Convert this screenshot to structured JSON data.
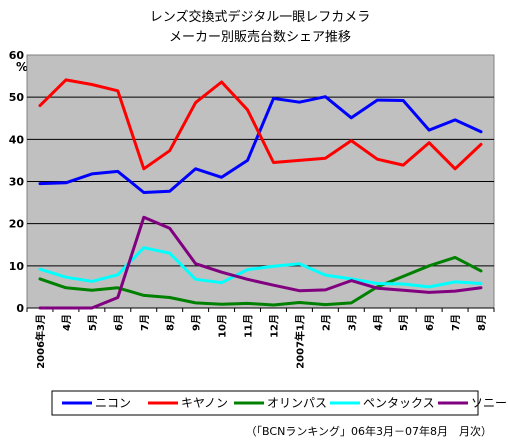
{
  "chart_data": {
    "type": "line",
    "title_lines": [
      "レンズ交換式デジタル一眼レフカメラ",
      "メーカー別販売台数シェア推移"
    ],
    "y_unit": "%",
    "ylim": [
      0,
      60
    ],
    "yticks": [
      "0",
      "10",
      "20",
      "30",
      "40",
      "50",
      "60"
    ],
    "grid": true,
    "legend_position": "bottom",
    "categories": [
      "2006年3月",
      "4月",
      "5月",
      "6月",
      "7月",
      "8月",
      "9月",
      "10月",
      "11月",
      "12月",
      "2007年1月",
      "2月",
      "3月",
      "4月",
      "5月",
      "6月",
      "7月",
      "8月"
    ],
    "series": [
      {
        "name": "ニコン",
        "color": "#0000ff",
        "values": [
          29.5,
          29.7,
          31.8,
          32.4,
          27.4,
          27.7,
          33.0,
          31.0,
          35.0,
          49.7,
          48.8,
          50.1,
          45.1,
          49.3,
          49.2,
          42.2,
          44.6,
          41.8
        ]
      },
      {
        "name": "キヤノン",
        "color": "#ff0000",
        "values": [
          48.0,
          54.1,
          53.0,
          51.5,
          33.0,
          37.3,
          48.7,
          53.6,
          47.0,
          34.5,
          35.0,
          35.5,
          39.7,
          35.3,
          33.9,
          39.2,
          33.0,
          38.8
        ]
      },
      {
        "name": "オリンパス",
        "color": "#008000",
        "values": [
          6.9,
          4.8,
          4.2,
          4.8,
          3.0,
          2.5,
          1.2,
          0.9,
          1.1,
          0.7,
          1.3,
          0.8,
          1.2,
          5.0,
          7.5,
          10.0,
          12.0,
          8.8
        ]
      },
      {
        "name": "ペンタックス",
        "color": "#00ffff",
        "values": [
          9.2,
          7.3,
          6.3,
          7.9,
          14.3,
          13.0,
          6.8,
          6.0,
          9.1,
          9.9,
          10.5,
          7.8,
          6.9,
          5.8,
          5.7,
          5.0,
          6.2,
          5.8
        ]
      },
      {
        "name": "ソニー",
        "color": "#800080",
        "values": [
          0.0,
          0.0,
          0.0,
          2.5,
          21.5,
          18.9,
          10.5,
          8.5,
          6.8,
          5.4,
          4.1,
          4.3,
          6.5,
          4.7,
          4.2,
          3.7,
          4.0,
          4.8
        ]
      }
    ],
    "source_note": "（「BCNランキング」06年3月－07年8月　月次）"
  }
}
